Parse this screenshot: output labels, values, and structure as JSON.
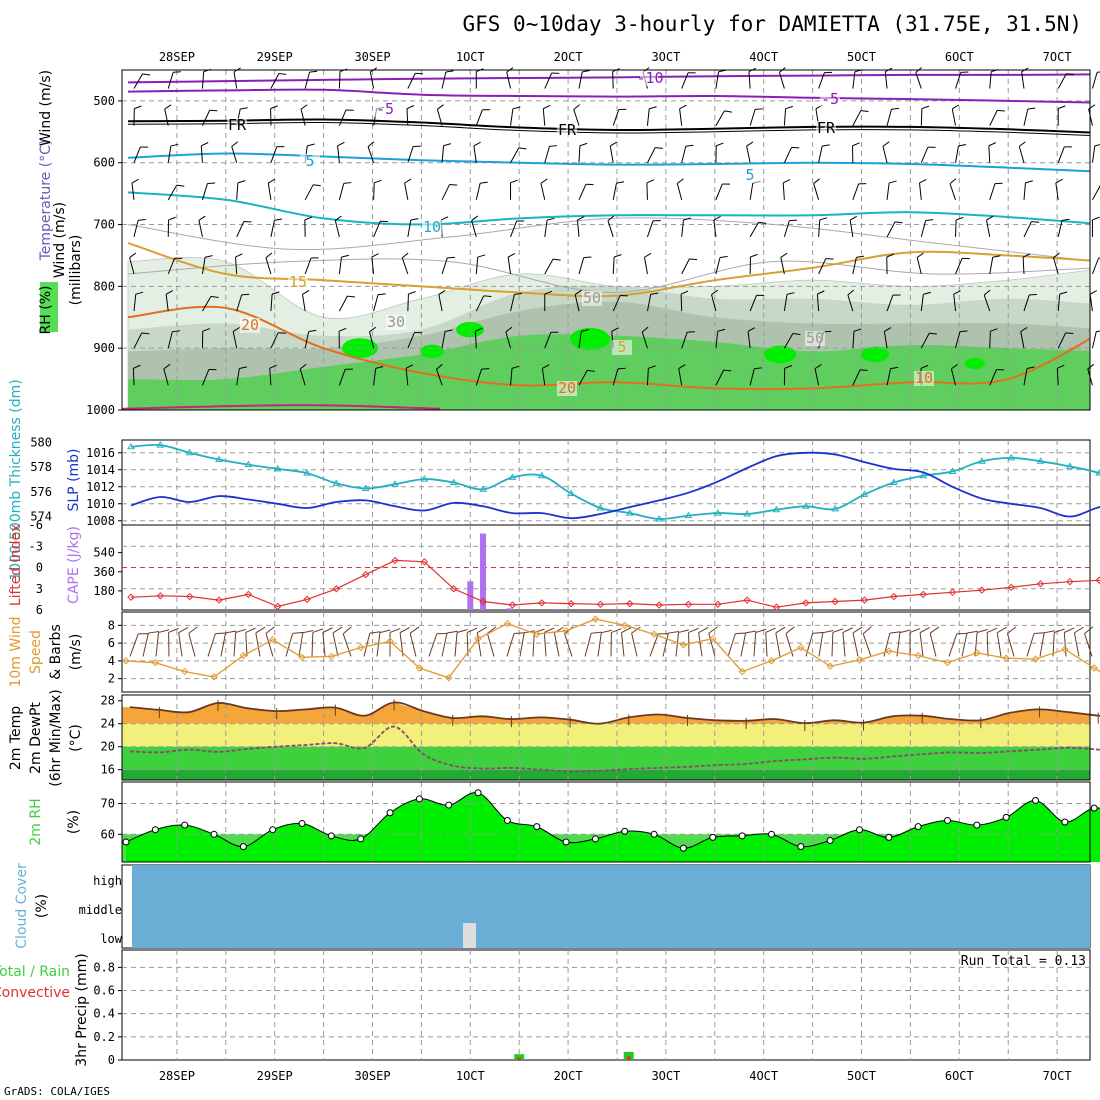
{
  "title": "GFS 0~10day 3-hourly for DAMIETTA (31.75E, 31.5N)",
  "credit": "GrADS: COLA/IGES",
  "colors": {
    "rh_light": "#e4efe4",
    "rh_mid": "#c8d8c8",
    "rh_dark": "#aec2ae",
    "rh_green": "#5fce5f",
    "rh_bright": "#00ee00",
    "cyan": "#22b0c0",
    "blue": "#1a33cc",
    "purple": "#b070f0",
    "red": "#e03030",
    "orange": "#e09a30",
    "fill_orange": "#f5a63a",
    "fill_yellow": "#f2f07a",
    "fill_green": "#3ed13e",
    "rh_fill": "#00ee00",
    "cloud": "#6aaed6",
    "magenta": "#cc2277",
    "brown": "#6a3a20"
  },
  "chart_data": [
    {
      "id": "upper_air",
      "type": "heatmap",
      "ylabels": [
        "Wind (m/s)",
        "Temperature (°C)",
        "RH (%)"
      ],
      "yaxis_name": "(millibars)",
      "xticks_top": [
        "28SEP",
        "29SEP",
        "30SEP",
        "1OCT",
        "2OCT",
        "3OCT",
        "4OCT",
        "5OCT",
        "6OCT",
        "7OCT"
      ],
      "yticks": [
        500,
        600,
        700,
        800,
        900,
        1000
      ],
      "ylim": [
        1000,
        450
      ],
      "contour_labels": [
        "-10",
        "-5",
        "FR",
        "5",
        "10",
        "15",
        "20",
        "20",
        "10",
        "5",
        "10",
        "30",
        "50",
        "10"
      ],
      "rh_levels": [
        30,
        50,
        70,
        90
      ],
      "isotherms": [
        {
          "label": "-10",
          "p": [
            470,
            468,
            466,
            464,
            463,
            462,
            460,
            459,
            458,
            458,
            457
          ]
        },
        {
          "label": "-5",
          "p": [
            485,
            483,
            482,
            490,
            492,
            493,
            492,
            495,
            497,
            500,
            503
          ]
        },
        {
          "label": "FR",
          "p": [
            533,
            532,
            530,
            535,
            543,
            547,
            545,
            542,
            542,
            546,
            552
          ]
        },
        {
          "label": "5",
          "p": [
            592,
            585,
            590,
            596,
            600,
            603,
            602,
            600,
            602,
            608,
            615
          ]
        },
        {
          "label": "10",
          "p": [
            648,
            660,
            690,
            700,
            690,
            685,
            685,
            685,
            680,
            688,
            700
          ]
        },
        {
          "label": "15",
          "p": [
            730,
            780,
            790,
            800,
            810,
            815,
            790,
            770,
            745,
            750,
            760
          ]
        },
        {
          "label": "20",
          "p": [
            850,
            835,
            900,
            940,
            960,
            955,
            965,
            965,
            955,
            950,
            870
          ]
        }
      ]
    },
    {
      "id": "thickness_slp",
      "type": "line",
      "ylabel_left": "1000-500mb Thickness (dm)",
      "ylabel_right": "SLP (mb)",
      "yticks_left": [
        574,
        576,
        578,
        580
      ],
      "yticks_right": [
        1008,
        1010,
        1012,
        1014,
        1016
      ],
      "series": [
        {
          "name": "Thickness",
          "color": "cyan",
          "values": [
            1016.7,
            1016.9,
            1016.0,
            1015.2,
            1014.6,
            1014.1,
            1013.6,
            1012.4,
            1011.8,
            1012.3,
            1012.9,
            1012.5,
            1011.7,
            1013.1,
            1013.3,
            1011.2,
            1009.5,
            1008.9,
            1008.2,
            1008.6,
            1008.9,
            1008.8,
            1009.3,
            1009.7,
            1009.4,
            1011.1,
            1012.5,
            1013.3,
            1013.8,
            1015.0,
            1015.4,
            1015.0,
            1014.4,
            1013.6,
            1012.2
          ]
        },
        {
          "name": "SLP",
          "color": "blue",
          "values": [
            1009.8,
            1010.8,
            1010.2,
            1010.9,
            1010.5,
            1010.0,
            1009.5,
            1010.2,
            1010.4,
            1009.7,
            1009.2,
            1010.1,
            1009.7,
            1008.9,
            1008.9,
            1008.3,
            1008.8,
            1009.6,
            1010.4,
            1011.3,
            1012.6,
            1014.2,
            1015.6,
            1016.0,
            1015.8,
            1014.9,
            1014.1,
            1013.7,
            1012.0,
            1010.6,
            1010.0,
            1009.5,
            1008.5,
            1009.6,
            1010.3
          ]
        }
      ]
    },
    {
      "id": "lifted_cape",
      "type": "bar",
      "ylabel_left": "Lifted Index",
      "ylabel_right": "CAPE (J/kg)",
      "yticks_left": [
        "-6",
        "-3",
        "0",
        "3",
        "6"
      ],
      "yticks_right": [
        180,
        360,
        540
      ],
      "lifted_index": [
        4.2,
        4.0,
        4.1,
        4.6,
        3.8,
        5.5,
        4.5,
        3.0,
        1.0,
        -1.0,
        -0.8,
        3.0,
        4.8,
        5.3,
        5.0,
        5.1,
        5.2,
        5.1,
        5.3,
        5.2,
        5.2,
        4.6,
        5.6,
        5.0,
        4.8,
        4.6,
        4.1,
        3.8,
        3.5,
        3.2,
        2.8,
        2.3,
        2.0,
        1.8,
        2.4
      ],
      "cape_bars": [
        {
          "day": 3.5,
          "value": 270
        },
        {
          "day": 3.63,
          "value": 720
        },
        {
          "day": 3.9,
          "value": 15
        },
        {
          "day": 4.4,
          "value": 10
        }
      ]
    },
    {
      "id": "wind10m",
      "type": "line",
      "ylabel": "10m Wind Speed & Barbs (m/s)",
      "yticks": [
        2,
        4,
        6,
        8
      ],
      "values": [
        4.0,
        3.8,
        2.8,
        2.2,
        4.6,
        6.4,
        4.4,
        4.5,
        5.5,
        6.2,
        3.2,
        2.1,
        6.5,
        8.2,
        7.0,
        7.4,
        8.7,
        8.0,
        7.0,
        5.8,
        6.5,
        2.8,
        4.0,
        5.5,
        3.4,
        4.1,
        5.1,
        4.6,
        3.8,
        4.9,
        4.3,
        4.2,
        5.3,
        3.2,
        1.2
      ]
    },
    {
      "id": "temp2m",
      "type": "area",
      "ylabel": "2m Temp 2m DewPt (6hr Min/Max) (°C)",
      "yticks": [
        16,
        20,
        24,
        28
      ],
      "temp": [
        26.9,
        26.4,
        26.0,
        27.6,
        26.7,
        26.2,
        26.5,
        26.8,
        25.4,
        27.7,
        26.2,
        25.0,
        25.3,
        24.8,
        25.1,
        24.7,
        24.0,
        25.1,
        25.6,
        25.0,
        24.6,
        24.5,
        24.8,
        24.1,
        24.6,
        24.2,
        25.3,
        25.4,
        24.8,
        24.6,
        25.9,
        26.5,
        26.0,
        25.4,
        24.8
      ],
      "dewpt": [
        19.2,
        19.0,
        19.5,
        19.1,
        19.6,
        20.0,
        20.3,
        20.6,
        19.8,
        23.5,
        18.7,
        16.7,
        16.2,
        16.3,
        16.0,
        15.7,
        15.8,
        16.1,
        16.3,
        16.5,
        16.8,
        17.0,
        17.5,
        17.8,
        18.1,
        17.9,
        18.3,
        18.7,
        19.0,
        18.9,
        19.2,
        19.5,
        19.8,
        19.5,
        19.0
      ]
    },
    {
      "id": "rh2m",
      "type": "area",
      "ylabel": "2m RH (%)",
      "yticks": [
        60,
        70
      ],
      "values": [
        57.5,
        61.5,
        63.0,
        60.0,
        56.0,
        61.5,
        63.5,
        59.5,
        58.5,
        67.0,
        71.5,
        69.5,
        73.5,
        64.5,
        62.5,
        57.5,
        58.5,
        61.0,
        60.0,
        55.5,
        59.0,
        59.5,
        60.0,
        56.0,
        58.0,
        61.5,
        59.0,
        62.5,
        64.5,
        63.0,
        65.5,
        71.0,
        64.0,
        68.5,
        66.5
      ]
    },
    {
      "id": "cloud",
      "type": "area",
      "ylabel": "Cloud Cover (%)",
      "ylabels": [
        "high",
        "middle",
        "low"
      ]
    },
    {
      "id": "precip",
      "type": "bar",
      "ylabel_left": "Total / Rain",
      "ylabel_left2": "Convective",
      "ylabel": "3hr Precip (mm)",
      "yticks": [
        "0",
        "0.2",
        "0.4",
        "0.6",
        "0.8"
      ],
      "annotation": "Run Total = 0.13",
      "xticks": [
        "28SEP",
        "29SEP",
        "30SEP",
        "1OCT",
        "2OCT",
        "3OCT",
        "4OCT",
        "5OCT",
        "6OCT",
        "7OCT"
      ],
      "bars": [
        {
          "day": 4.0,
          "total": 0.05,
          "conv": 0.02
        },
        {
          "day": 5.12,
          "total": 0.07,
          "conv": 0.03
        }
      ]
    }
  ]
}
